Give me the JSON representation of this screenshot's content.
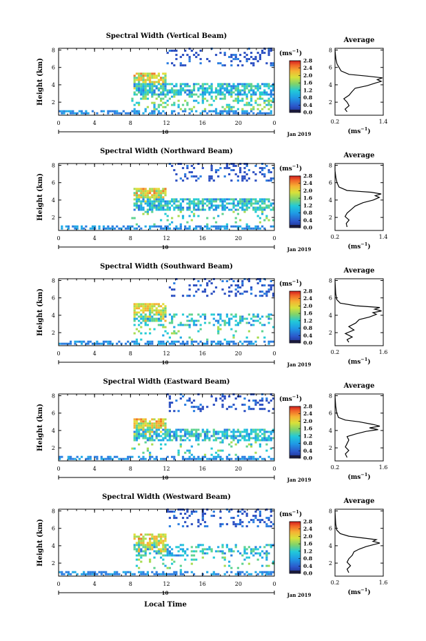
{
  "figure": {
    "xlabel": "Local Time"
  },
  "chart_data": [
    {
      "type": "heatmap",
      "title": "Spectral Width (Vertical Beam)",
      "ylabel": "Height (km)",
      "x_ticks": [
        "0",
        "4",
        "8",
        "12",
        "16",
        "20",
        "0"
      ],
      "xlim": [
        0,
        24
      ],
      "y_ticks": [
        "2",
        "4",
        "6",
        "8"
      ],
      "ylim": [
        0.5,
        8.2
      ],
      "date_label": "10",
      "date_suffix": "Jan 2019",
      "colorbar": {
        "unit": "(ms",
        "unit_exp": "−1",
        "unit_close": ")",
        "ticks": [
          "0.0",
          "0.4",
          "0.8",
          "1.2",
          "1.6",
          "2.0",
          "2.4",
          "2.8"
        ],
        "range": [
          0,
          2.8
        ]
      },
      "average": {
        "title": "Average",
        "x_ticks": [
          "0.2",
          "1.4"
        ],
        "xlim": [
          0.2,
          1.4
        ],
        "y_ticks": [
          "2",
          "4",
          "6",
          "8"
        ],
        "ylim": [
          0.5,
          8.2
        ],
        "xlabel": "(ms",
        "xlabel_exp": "−1",
        "xlabel_close": ")",
        "profile": [
          [
            0.5,
            0.9
          ],
          [
            0.45,
            1.2
          ],
          [
            0.55,
            1.6
          ],
          [
            0.5,
            2.0
          ],
          [
            0.42,
            2.4
          ],
          [
            0.55,
            2.8
          ],
          [
            0.62,
            3.2
          ],
          [
            0.7,
            3.6
          ],
          [
            1.0,
            3.9
          ],
          [
            1.2,
            4.2
          ],
          [
            1.35,
            4.4
          ],
          [
            1.25,
            4.6
          ],
          [
            1.38,
            4.8
          ],
          [
            1.0,
            5.0
          ],
          [
            0.55,
            5.2
          ],
          [
            0.35,
            5.6
          ],
          [
            0.3,
            6.0
          ],
          [
            0.25,
            6.4
          ],
          [
            0.22,
            7.0
          ],
          [
            0.2,
            8.0
          ]
        ]
      }
    },
    {
      "type": "heatmap",
      "title": "Spectral Width (Northward Beam)",
      "ylabel": "Height (km)",
      "x_ticks": [
        "0",
        "4",
        "8",
        "12",
        "16",
        "20",
        "0"
      ],
      "xlim": [
        0,
        24
      ],
      "y_ticks": [
        "2",
        "4",
        "6",
        "8"
      ],
      "ylim": [
        0.5,
        8.2
      ],
      "date_label": "10",
      "date_suffix": "Jan 2019",
      "colorbar": {
        "unit": "(ms",
        "unit_exp": "−1",
        "unit_close": ")",
        "ticks": [
          "0.0",
          "0.4",
          "0.8",
          "1.2",
          "1.6",
          "2.0",
          "2.4",
          "2.8"
        ],
        "range": [
          0,
          2.8
        ]
      },
      "average": {
        "title": "Average",
        "x_ticks": [
          "0.2",
          "1.4"
        ],
        "xlim": [
          0.2,
          1.4
        ],
        "y_ticks": [
          "2",
          "4",
          "6",
          "8"
        ],
        "ylim": [
          0.5,
          8.2
        ],
        "xlabel": "(ms",
        "xlabel_exp": "−1",
        "xlabel_close": ")",
        "profile": [
          [
            0.5,
            0.9
          ],
          [
            0.48,
            1.3
          ],
          [
            0.55,
            1.7
          ],
          [
            0.45,
            2.1
          ],
          [
            0.5,
            2.5
          ],
          [
            0.6,
            2.9
          ],
          [
            0.7,
            3.3
          ],
          [
            0.9,
            3.7
          ],
          [
            1.15,
            4.0
          ],
          [
            1.3,
            4.3
          ],
          [
            1.2,
            4.5
          ],
          [
            1.35,
            4.7
          ],
          [
            1.1,
            4.9
          ],
          [
            0.5,
            5.1
          ],
          [
            0.3,
            5.5
          ],
          [
            0.25,
            6.0
          ],
          [
            0.22,
            6.6
          ],
          [
            0.2,
            7.4
          ],
          [
            0.2,
            8.0
          ]
        ]
      }
    },
    {
      "type": "heatmap",
      "title": "Spectral Width (Southward Beam)",
      "ylabel": "Height (km)",
      "x_ticks": [
        "0",
        "4",
        "8",
        "12",
        "16",
        "20",
        "0"
      ],
      "xlim": [
        0,
        24
      ],
      "y_ticks": [
        "2",
        "4",
        "6",
        "8"
      ],
      "ylim": [
        0.5,
        8.2
      ],
      "date_label": "10",
      "date_suffix": "Jan 2019",
      "colorbar": {
        "unit": "(ms",
        "unit_exp": "−1",
        "unit_close": ")",
        "ticks": [
          "0.0",
          "0.4",
          "0.8",
          "1.2",
          "1.6",
          "2.0",
          "2.4",
          "2.8"
        ],
        "range": [
          0,
          2.8
        ]
      },
      "average": {
        "title": "Average",
        "x_ticks": [
          "0.2",
          "1.6"
        ],
        "xlim": [
          0.2,
          1.6
        ],
        "y_ticks": [
          "2",
          "4",
          "6",
          "8"
        ],
        "ylim": [
          0.5,
          8.2
        ],
        "xlabel": "(ms",
        "xlabel_exp": "−1",
        "xlabel_close": ")",
        "profile": [
          [
            0.6,
            0.9
          ],
          [
            0.55,
            1.2
          ],
          [
            0.7,
            1.5
          ],
          [
            0.5,
            1.9
          ],
          [
            0.75,
            2.3
          ],
          [
            0.6,
            2.7
          ],
          [
            0.8,
            3.1
          ],
          [
            0.9,
            3.5
          ],
          [
            1.2,
            3.8
          ],
          [
            1.4,
            4.1
          ],
          [
            1.3,
            4.3
          ],
          [
            1.55,
            4.5
          ],
          [
            1.35,
            4.7
          ],
          [
            1.5,
            4.9
          ],
          [
            0.8,
            5.1
          ],
          [
            0.35,
            5.4
          ],
          [
            0.25,
            5.8
          ],
          [
            0.22,
            6.5
          ],
          [
            0.2,
            8.0
          ]
        ]
      }
    },
    {
      "type": "heatmap",
      "title": "Spectral Width (Eastward Beam)",
      "ylabel": "Height (km)",
      "x_ticks": [
        "0",
        "4",
        "8",
        "12",
        "16",
        "20",
        "0"
      ],
      "xlim": [
        0,
        24
      ],
      "y_ticks": [
        "2",
        "4",
        "6",
        "8"
      ],
      "ylim": [
        0.5,
        8.2
      ],
      "date_label": "10",
      "date_suffix": "Jan 2019",
      "colorbar": {
        "unit": "(ms",
        "unit_exp": "−1",
        "unit_close": ")",
        "ticks": [
          "0.0",
          "0.4",
          "0.8",
          "1.2",
          "1.6",
          "2.0",
          "2.4",
          "2.8"
        ],
        "range": [
          0,
          2.8
        ]
      },
      "average": {
        "title": "Average",
        "x_ticks": [
          "0.2",
          "1.6"
        ],
        "xlim": [
          0.2,
          1.6
        ],
        "y_ticks": [
          "2",
          "4",
          "6",
          "8"
        ],
        "ylim": [
          0.5,
          8.2
        ],
        "xlabel": "(ms",
        "xlabel_exp": "−1",
        "xlabel_close": ")",
        "profile": [
          [
            0.55,
            0.9
          ],
          [
            0.5,
            1.3
          ],
          [
            0.6,
            1.7
          ],
          [
            0.5,
            2.1
          ],
          [
            0.55,
            2.5
          ],
          [
            0.6,
            2.9
          ],
          [
            0.55,
            3.3
          ],
          [
            0.8,
            3.6
          ],
          [
            1.1,
            3.9
          ],
          [
            1.45,
            4.1
          ],
          [
            1.2,
            4.3
          ],
          [
            1.5,
            4.5
          ],
          [
            1.3,
            4.7
          ],
          [
            0.9,
            5.0
          ],
          [
            0.5,
            5.2
          ],
          [
            0.3,
            5.5
          ],
          [
            0.25,
            6.0
          ],
          [
            0.22,
            6.8
          ],
          [
            0.2,
            8.0
          ]
        ]
      }
    },
    {
      "type": "heatmap",
      "title": "Spectral Width (Westward Beam)",
      "ylabel": "Height (km)",
      "x_ticks": [
        "0",
        "4",
        "8",
        "12",
        "16",
        "20",
        "0"
      ],
      "xlim": [
        0,
        24
      ],
      "y_ticks": [
        "2",
        "4",
        "6",
        "8"
      ],
      "ylim": [
        0.5,
        8.2
      ],
      "date_label": "10",
      "date_suffix": "Jan 2019",
      "colorbar": {
        "unit": "(ms",
        "unit_exp": "−1",
        "unit_close": ")",
        "ticks": [
          "0.0",
          "0.4",
          "0.8",
          "1.2",
          "1.6",
          "2.0",
          "2.4",
          "2.8"
        ],
        "range": [
          0,
          2.8
        ]
      },
      "average": {
        "title": "Average",
        "x_ticks": [
          "0.2",
          "1.6"
        ],
        "xlim": [
          0.2,
          1.6
        ],
        "y_ticks": [
          "2",
          "4",
          "6",
          "8"
        ],
        "ylim": [
          0.5,
          8.2
        ],
        "xlabel": "(ms",
        "xlabel_exp": "−1",
        "xlabel_close": ")",
        "profile": [
          [
            0.6,
            0.9
          ],
          [
            0.55,
            1.3
          ],
          [
            0.65,
            1.7
          ],
          [
            0.55,
            2.1
          ],
          [
            0.6,
            2.5
          ],
          [
            0.7,
            2.9
          ],
          [
            0.75,
            3.3
          ],
          [
            0.9,
            3.6
          ],
          [
            1.1,
            3.9
          ],
          [
            1.3,
            4.1
          ],
          [
            1.5,
            4.3
          ],
          [
            1.3,
            4.5
          ],
          [
            1.4,
            4.7
          ],
          [
            1.0,
            4.9
          ],
          [
            0.6,
            5.1
          ],
          [
            0.35,
            5.4
          ],
          [
            0.25,
            5.8
          ],
          [
            0.22,
            6.5
          ],
          [
            0.2,
            8.0
          ]
        ]
      }
    }
  ]
}
